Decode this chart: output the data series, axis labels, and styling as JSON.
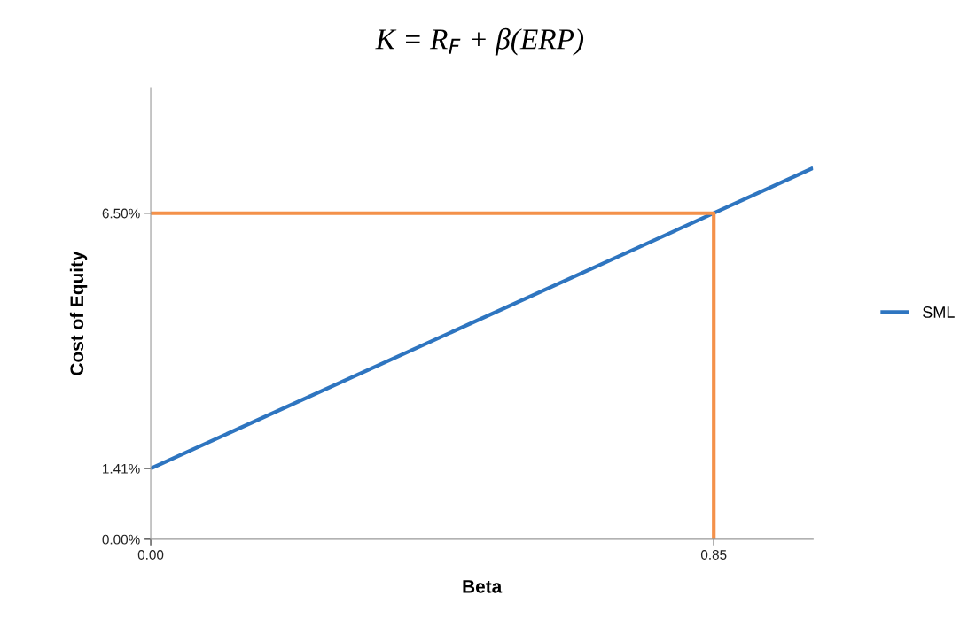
{
  "chart_data": {
    "type": "line",
    "title": "K = R$_{F}$ + β(ERP)",
    "xlabel": "Beta",
    "ylabel": "Cost of Equity",
    "series": [
      {
        "name": "SML",
        "color": "#2e75c0",
        "x": [
          0,
          0.85,
          1.0
        ],
        "values": [
          1.41,
          6.5,
          7.4
        ]
      },
      {
        "color": "#f4914a",
        "x": [
          0,
          0.85,
          0.85
        ],
        "values": [
          6.5,
          6.5,
          0
        ]
      }
    ],
    "xlim": [
      0,
      1.0
    ],
    "ylim": [
      0,
      9
    ],
    "xticks": [
      {
        "value": 0,
        "label": "0.00"
      },
      {
        "value": 0.85,
        "label": "0.85"
      }
    ],
    "yticks": [
      {
        "value": 0,
        "label": "0.00%"
      },
      {
        "value": 1.41,
        "label": "1.41%"
      },
      {
        "value": 6.5,
        "label": "6.50%"
      }
    ],
    "grid": false,
    "legend": "right",
    "marker": "none",
    "line_style": "solid"
  }
}
